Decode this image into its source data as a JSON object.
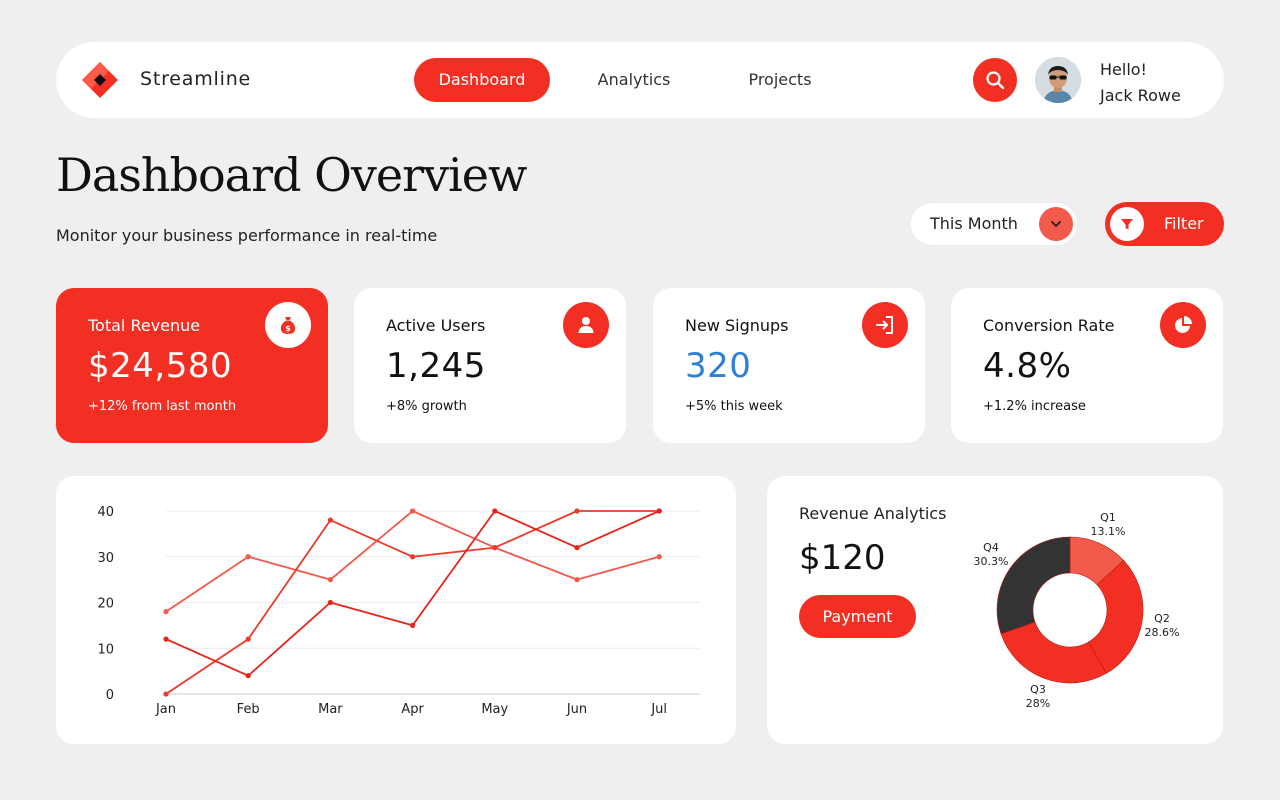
{
  "nav": {
    "brand": "Streamline",
    "tabs": [
      {
        "label": "Dashboard",
        "active": true
      },
      {
        "label": "Analytics",
        "active": false
      },
      {
        "label": "Projects",
        "active": false
      }
    ],
    "search_icon": "search-icon",
    "user": {
      "greeting": "Hello!",
      "name": "Jack Rowe"
    }
  },
  "header": {
    "title": "Dashboard Overview",
    "subtitle": "Monitor your business performance in real-time",
    "period": "This Month",
    "filter_label": "Filter"
  },
  "cards": [
    {
      "title": "Total Revenue",
      "value": "$24,580",
      "note": "+12% from last month",
      "icon": "money-bag-icon"
    },
    {
      "title": "Active Users",
      "value": "1,245",
      "note": "+8% growth",
      "icon": "user-icon"
    },
    {
      "title": "New Signups",
      "value": "320",
      "note": "+5% this week",
      "icon": "sign-in-icon"
    },
    {
      "title": "Conversion Rate",
      "value": "4.8%",
      "note": "+1.2% increase",
      "icon": "pie-chart-icon"
    }
  ],
  "revenue": {
    "title": "Revenue Analytics",
    "value": "$120",
    "button": "Payment"
  },
  "colors": {
    "accent": "#f22f22",
    "accent_light": "#f25a4c",
    "dark": "#333333",
    "highlight_blue": "#2e7fd6"
  },
  "chart_data": [
    {
      "type": "line",
      "categories": [
        "Jan",
        "Feb",
        "Mar",
        "Apr",
        "May",
        "Jun",
        "Jul"
      ],
      "ylim": [
        0,
        40
      ],
      "yticks": [
        0,
        10,
        20,
        30,
        40
      ],
      "grid": true,
      "series": [
        {
          "values": [
            18,
            30,
            25,
            40,
            32,
            25,
            30
          ],
          "color": "#f25a4c"
        },
        {
          "values": [
            0,
            12,
            38,
            30,
            32,
            40,
            40
          ],
          "color": "#ec3a2c"
        },
        {
          "values": [
            12,
            4,
            20,
            15,
            40,
            32,
            40
          ],
          "color": "#e8231a"
        }
      ]
    },
    {
      "type": "pie",
      "donut": true,
      "slices": [
        {
          "label": "Q1",
          "pct": "13.1%",
          "value": 13.1,
          "color": "#f25a4c"
        },
        {
          "label": "Q2",
          "pct": "28.6%",
          "value": 28.6,
          "color": "#f22f22"
        },
        {
          "label": "Q3",
          "pct": "28%",
          "value": 28.0,
          "color": "#f22f22"
        },
        {
          "label": "Q4",
          "pct": "30.3%",
          "value": 30.3,
          "color": "#333333"
        }
      ]
    }
  ]
}
